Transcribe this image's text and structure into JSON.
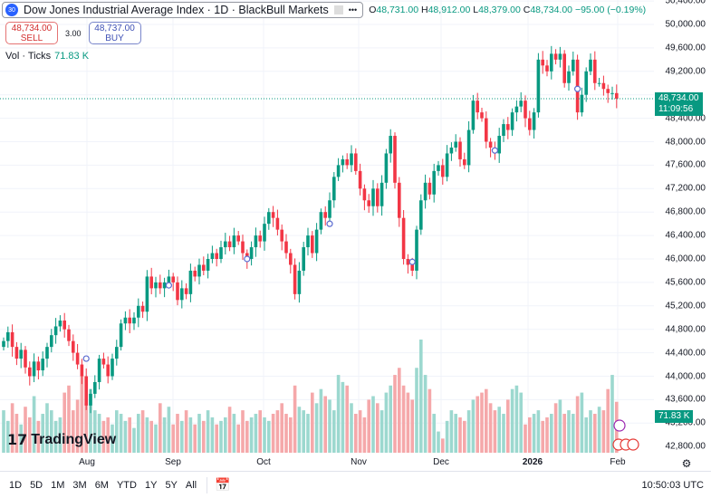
{
  "header": {
    "symbol_badge": "30",
    "title": "Dow Jones Industrial Average Index · 1D · BlackBull Markets",
    "more": "•••",
    "ohlc": {
      "o_label": "O",
      "o": "48,731.00",
      "h_label": "H",
      "h": "48,912.00",
      "l_label": "L",
      "l": "48,379.00",
      "c_label": "C",
      "c": "48,734.00",
      "change": "−95.00 (−0.19%)"
    }
  },
  "trade": {
    "sell_price": "48,734.00",
    "sell_label": "SELL",
    "spread": "3.00",
    "buy_price": "48,737.00",
    "buy_label": "BUY"
  },
  "volume_legend": {
    "label": "Vol · Ticks",
    "value": "71.83 K"
  },
  "price_axis": [
    "50,400.00",
    "50,000.00",
    "49,600.00",
    "49,200.00",
    "48,400.00",
    "48,000.00",
    "47,600.00",
    "47,200.00",
    "46,800.00",
    "46,400.00",
    "46,000.00",
    "45,600.00",
    "45,200.00",
    "44,800.00",
    "44,400.00",
    "44,000.00",
    "43,600.00",
    "43,200.00",
    "42,800.00"
  ],
  "price_tag": {
    "price": "48,734.00",
    "countdown": "11:09:56"
  },
  "volume_tag": "71.83 K",
  "time_axis": [
    "Aug",
    "Sep",
    "Oct",
    "Nov",
    "Dec",
    "2026",
    "Feb"
  ],
  "logo": "TradingView",
  "toolbar": {
    "ranges": [
      "1D",
      "5D",
      "1M",
      "3M",
      "6M",
      "YTD",
      "1Y",
      "5Y",
      "All"
    ],
    "clock": "10:50:03 UTC"
  },
  "colors": {
    "up": "#089981",
    "down": "#f23645",
    "up_vol": "#9cd8cf",
    "down_vol": "#f5a8aa"
  },
  "chart_data": {
    "type": "candlestick",
    "first_open": 44500,
    "closes": [
      44600,
      44750,
      44500,
      44300,
      44450,
      44150,
      44000,
      44250,
      44100,
      44300,
      44500,
      44700,
      44850,
      44950,
      44800,
      44600,
      44400,
      44200,
      44000,
      43500,
      43700,
      43900,
      44300,
      44200,
      44000,
      44300,
      44500,
      44900,
      45000,
      44900,
      45000,
      45200,
      45100,
      45700,
      45500,
      45600,
      45500,
      45600,
      45700,
      45600,
      45300,
      45500,
      45400,
      45800,
      45700,
      45900,
      45800,
      46000,
      46100,
      46000,
      46200,
      46300,
      46200,
      46400,
      46300,
      46100,
      46000,
      46200,
      46400,
      46300,
      46600,
      46800,
      46700,
      46500,
      46300,
      46100,
      45900,
      45400,
      45800,
      46200,
      46400,
      46100,
      46500,
      46800,
      46700,
      47000,
      47400,
      47600,
      47700,
      47600,
      47800,
      47500,
      47200,
      47000,
      46900,
      47200,
      46900,
      47300,
      47800,
      48100,
      47300,
      46700,
      46000,
      45900,
      45800,
      46500,
      47000,
      47300,
      47100,
      47500,
      47600,
      47400,
      47800,
      47900,
      48000,
      47700,
      47600,
      48200,
      48700,
      48500,
      48400,
      48000,
      47900,
      47800,
      48100,
      48300,
      48200,
      48500,
      48600,
      48700,
      48400,
      48200,
      48500,
      49400,
      49300,
      49200,
      49500,
      49400,
      49500,
      49000,
      49200,
      49400,
      48500,
      48800,
      49200,
      49400,
      49000,
      49000,
      48900,
      48829,
      48829,
      48734
    ],
    "volumes_k": [
      60,
      45,
      70,
      55,
      40,
      65,
      50,
      80,
      45,
      55,
      70,
      60,
      45,
      50,
      85,
      95,
      60,
      75,
      110,
      70,
      90,
      60,
      55,
      45,
      50,
      40,
      60,
      55,
      45,
      50,
      35,
      55,
      60,
      50,
      45,
      40,
      70,
      50,
      65,
      40,
      55,
      45,
      60,
      50,
      40,
      55,
      45,
      60,
      50,
      40,
      45,
      50,
      65,
      55,
      40,
      60,
      45,
      50,
      55,
      60,
      50,
      45,
      55,
      60,
      70,
      55,
      50,
      95,
      65,
      60,
      55,
      85,
      70,
      90,
      80,
      75,
      60,
      110,
      100,
      95,
      70,
      55,
      60,
      50,
      75,
      80,
      70,
      60,
      85,
      95,
      110,
      120,
      95,
      85,
      75,
      120,
      160,
      110,
      90,
      55,
      30,
      20,
      45,
      60,
      55,
      50,
      45,
      60,
      75,
      80,
      85,
      90,
      70,
      60,
      65,
      55,
      75,
      90,
      95,
      85,
      40,
      50,
      55,
      60,
      45,
      50,
      55,
      70,
      75,
      55,
      60,
      55,
      80,
      85,
      50,
      60,
      55,
      65,
      60,
      90,
      110,
      72
    ],
    "event_markers": [
      {
        "index": 19,
        "price": 44300
      },
      {
        "index": 38,
        "price": 45550
      },
      {
        "index": 56,
        "price": 46000
      },
      {
        "index": 75,
        "price": 46600
      },
      {
        "index": 94,
        "price": 45950
      },
      {
        "index": 113,
        "price": 47850
      },
      {
        "index": 132,
        "price": 48900
      }
    ]
  }
}
